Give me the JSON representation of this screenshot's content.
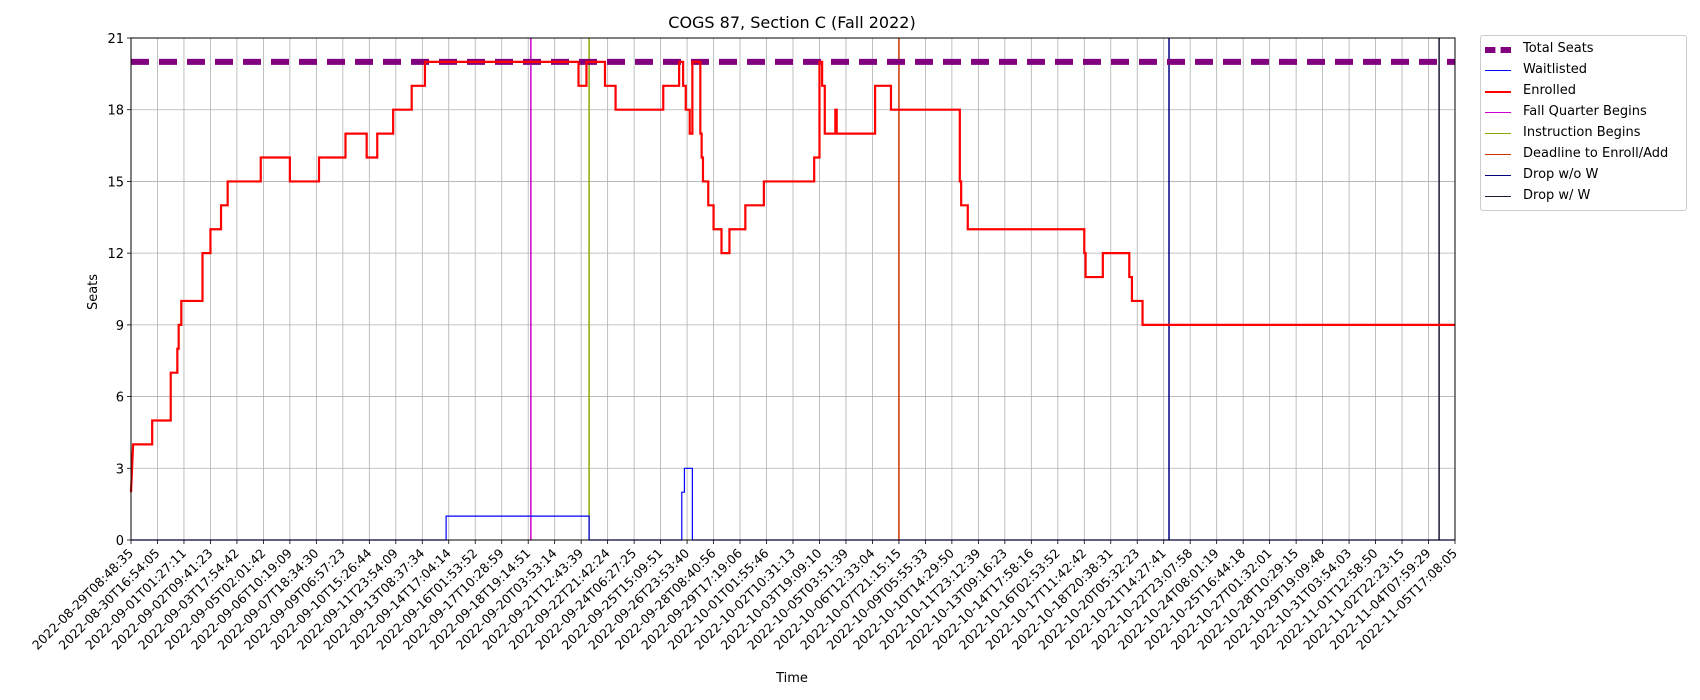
{
  "chart_data": {
    "type": "line",
    "title": "COGS 87, Section C (Fall 2022)",
    "xlabel": "Time",
    "ylabel": "Seats",
    "ylim": [
      0,
      21
    ],
    "yticks": [
      0,
      3,
      6,
      9,
      12,
      15,
      18,
      21
    ],
    "grid": true,
    "legend_position": "outside-top-right",
    "x_tick_labels": [
      "2022-08-29T08:48:35",
      "2022-08-30T16:54:05",
      "2022-09-01T01:27:11",
      "2022-09-02T09:41:23",
      "2022-09-03T17:54:42",
      "2022-09-05T02:01:42",
      "2022-09-06T10:19:09",
      "2022-09-07T18:34:30",
      "2022-09-09T06:57:23",
      "2022-09-10T15:26:44",
      "2022-09-11T23:54:09",
      "2022-09-13T08:37:34",
      "2022-09-14T17:04:14",
      "2022-09-16T01:53:52",
      "2022-09-17T10:28:59",
      "2022-09-18T19:14:51",
      "2022-09-20T03:53:14",
      "2022-09-21T12:43:39",
      "2022-09-22T21:42:24",
      "2022-09-24T06:27:25",
      "2022-09-25T15:09:51",
      "2022-09-26T23:53:40",
      "2022-09-28T08:40:56",
      "2022-09-29T17:19:06",
      "2022-10-01T01:55:46",
      "2022-10-02T10:31:13",
      "2022-10-03T19:09:10",
      "2022-10-05T03:51:39",
      "2022-10-06T12:33:04",
      "2022-10-07T21:15:15",
      "2022-10-09T05:55:33",
      "2022-10-10T14:29:50",
      "2022-10-11T23:12:39",
      "2022-10-13T09:16:23",
      "2022-10-14T17:58:16",
      "2022-10-16T02:53:52",
      "2022-10-17T11:42:42",
      "2022-10-18T20:38:31",
      "2022-10-20T05:32:23",
      "2022-10-21T14:27:41",
      "2022-10-22T23:07:58",
      "2022-10-24T08:01:19",
      "2022-10-25T16:44:18",
      "2022-10-27T01:32:01",
      "2022-10-28T10:29:15",
      "2022-10-29T19:09:48",
      "2022-10-31T03:54:03",
      "2022-11-01T12:58:50",
      "2022-11-02T22:23:15",
      "2022-11-04T07:59:29",
      "2022-11-05T17:08:05"
    ],
    "series": [
      {
        "name": "Total Seats",
        "color": "#800080",
        "style": "dashed",
        "points": [
          [
            0,
            20
          ],
          [
            50,
            20
          ]
        ]
      },
      {
        "name": "Waitlisted",
        "color": "#0000ff",
        "style": "solid",
        "points": [
          [
            0,
            0
          ],
          [
            11.9,
            0
          ],
          [
            11.9,
            1
          ],
          [
            17.3,
            1
          ],
          [
            17.3,
            0
          ],
          [
            20.8,
            0
          ],
          [
            20.8,
            2
          ],
          [
            20.9,
            2
          ],
          [
            20.9,
            3
          ],
          [
            21.2,
            3
          ],
          [
            21.2,
            0
          ],
          [
            50,
            0
          ]
        ]
      },
      {
        "name": "Enrolled",
        "color": "#ff0000",
        "style": "solid",
        "points": [
          [
            0,
            2
          ],
          [
            0.08,
            4
          ],
          [
            0.8,
            4
          ],
          [
            0.8,
            5
          ],
          [
            1.5,
            5
          ],
          [
            1.5,
            7
          ],
          [
            1.75,
            7
          ],
          [
            1.75,
            8
          ],
          [
            1.8,
            8
          ],
          [
            1.8,
            9
          ],
          [
            1.9,
            9
          ],
          [
            1.9,
            10
          ],
          [
            2.7,
            10
          ],
          [
            2.7,
            12
          ],
          [
            3.0,
            12
          ],
          [
            3.0,
            13
          ],
          [
            3.4,
            13
          ],
          [
            3.4,
            14
          ],
          [
            3.65,
            14
          ],
          [
            3.65,
            15
          ],
          [
            4.9,
            15
          ],
          [
            4.9,
            16
          ],
          [
            6.0,
            16
          ],
          [
            6.0,
            15
          ],
          [
            7.1,
            15
          ],
          [
            7.1,
            16
          ],
          [
            8.1,
            16
          ],
          [
            8.1,
            17
          ],
          [
            8.9,
            17
          ],
          [
            8.9,
            16
          ],
          [
            9.3,
            16
          ],
          [
            9.3,
            17
          ],
          [
            9.9,
            17
          ],
          [
            9.9,
            18
          ],
          [
            10.6,
            18
          ],
          [
            10.6,
            19
          ],
          [
            11.1,
            19
          ],
          [
            11.1,
            20
          ],
          [
            16.9,
            20
          ],
          [
            16.9,
            19
          ],
          [
            17.2,
            19
          ],
          [
            17.2,
            20
          ],
          [
            17.9,
            20
          ],
          [
            17.9,
            19
          ],
          [
            18.3,
            19
          ],
          [
            18.3,
            18
          ],
          [
            20.1,
            18
          ],
          [
            20.1,
            19
          ],
          [
            20.7,
            19
          ],
          [
            20.7,
            20
          ],
          [
            20.85,
            20
          ],
          [
            20.85,
            19
          ],
          [
            20.95,
            19
          ],
          [
            20.95,
            18
          ],
          [
            21.1,
            18
          ],
          [
            21.1,
            17
          ],
          [
            21.2,
            17
          ],
          [
            21.2,
            20
          ],
          [
            21.5,
            20
          ],
          [
            21.5,
            17
          ],
          [
            21.55,
            17
          ],
          [
            21.55,
            16
          ],
          [
            21.6,
            16
          ],
          [
            21.6,
            15
          ],
          [
            21.8,
            15
          ],
          [
            21.8,
            14
          ],
          [
            22.0,
            14
          ],
          [
            22.0,
            13
          ],
          [
            22.3,
            13
          ],
          [
            22.3,
            12
          ],
          [
            22.6,
            12
          ],
          [
            22.6,
            13
          ],
          [
            23.2,
            13
          ],
          [
            23.2,
            14
          ],
          [
            23.9,
            14
          ],
          [
            23.9,
            15
          ],
          [
            25.8,
            15
          ],
          [
            25.8,
            16
          ],
          [
            26.0,
            16
          ],
          [
            26.0,
            20
          ],
          [
            26.1,
            20
          ],
          [
            26.1,
            19
          ],
          [
            26.2,
            19
          ],
          [
            26.2,
            17
          ],
          [
            26.6,
            17
          ],
          [
            26.6,
            18
          ],
          [
            26.65,
            18
          ],
          [
            26.65,
            17
          ],
          [
            28.1,
            17
          ],
          [
            28.1,
            19
          ],
          [
            28.7,
            19
          ],
          [
            28.7,
            18
          ],
          [
            31.3,
            18
          ],
          [
            31.3,
            15
          ],
          [
            31.35,
            15
          ],
          [
            31.35,
            14
          ],
          [
            31.6,
            14
          ],
          [
            31.6,
            13
          ],
          [
            36.0,
            13
          ],
          [
            36.0,
            12
          ],
          [
            36.05,
            12
          ],
          [
            36.05,
            11
          ],
          [
            36.7,
            11
          ],
          [
            36.7,
            12
          ],
          [
            37.7,
            12
          ],
          [
            37.7,
            11
          ],
          [
            37.8,
            11
          ],
          [
            37.8,
            10
          ],
          [
            38.2,
            10
          ],
          [
            38.2,
            9
          ],
          [
            50,
            9
          ]
        ]
      }
    ],
    "events": [
      {
        "name": "Fall Quarter Begins",
        "x": 15.1,
        "color": "#cc00cc"
      },
      {
        "name": "Instruction Begins",
        "x": 17.3,
        "color": "#88aa00"
      },
      {
        "name": "Deadline to Enroll/Add",
        "x": 29.0,
        "color": "#cc3300"
      },
      {
        "name": "Drop w/o W",
        "x": 39.2,
        "color": "#000080"
      },
      {
        "name": "Drop w/ W",
        "x": 49.4,
        "color": "#1a1a3a"
      }
    ]
  }
}
